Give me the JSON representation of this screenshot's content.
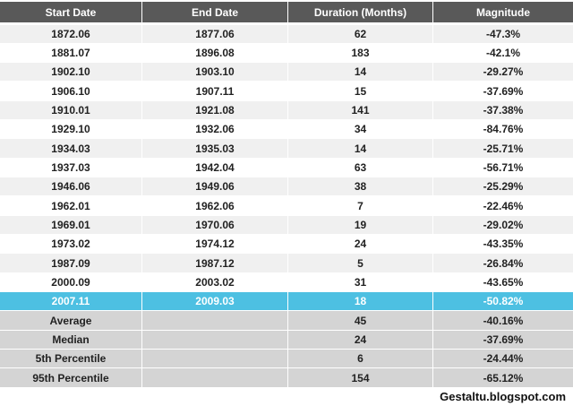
{
  "table": {
    "columns": [
      "Start Date",
      "End Date",
      "Duration (Months)",
      "Magnitude"
    ],
    "rows": [
      [
        "1872.06",
        "1877.06",
        62,
        "-47.3%"
      ],
      [
        "1881.07",
        "1896.08",
        183,
        "-42.1%"
      ],
      [
        "1902.10",
        "1903.10",
        14,
        "-29.27%"
      ],
      [
        "1906.10",
        "1907.11",
        15,
        "-37.69%"
      ],
      [
        "1910.01",
        "1921.08",
        141,
        "-37.38%"
      ],
      [
        "1929.10",
        "1932.06",
        34,
        "-84.76%"
      ],
      [
        "1934.03",
        "1935.03",
        14,
        "-25.71%"
      ],
      [
        "1937.03",
        "1942.04",
        63,
        "-56.71%"
      ],
      [
        "1946.06",
        "1949.06",
        38,
        "-25.29%"
      ],
      [
        "1962.01",
        "1962.06",
        7,
        "-22.46%"
      ],
      [
        "1969.01",
        "1970.06",
        19,
        "-29.02%"
      ],
      [
        "1973.02",
        "1974.12",
        24,
        "-43.35%"
      ],
      [
        "1987.09",
        "1987.12",
        5,
        "-26.84%"
      ],
      [
        "2000.09",
        "2003.02",
        31,
        "-43.65%"
      ]
    ],
    "highlighted_row": [
      "2007.11",
      "2009.03",
      18,
      "-50.82%"
    ],
    "summary": [
      {
        "label": "Average",
        "duration": 45,
        "magnitude": "-40.16%"
      },
      {
        "label": "Median",
        "duration": 24,
        "magnitude": "-37.69%"
      },
      {
        "label": "5th Percentile",
        "duration": 6,
        "magnitude": "-24.44%"
      },
      {
        "label": "95th Percentile",
        "duration": 154,
        "magnitude": "-65.12%"
      }
    ]
  },
  "footer": "Gestaltu.blogspot.com"
}
